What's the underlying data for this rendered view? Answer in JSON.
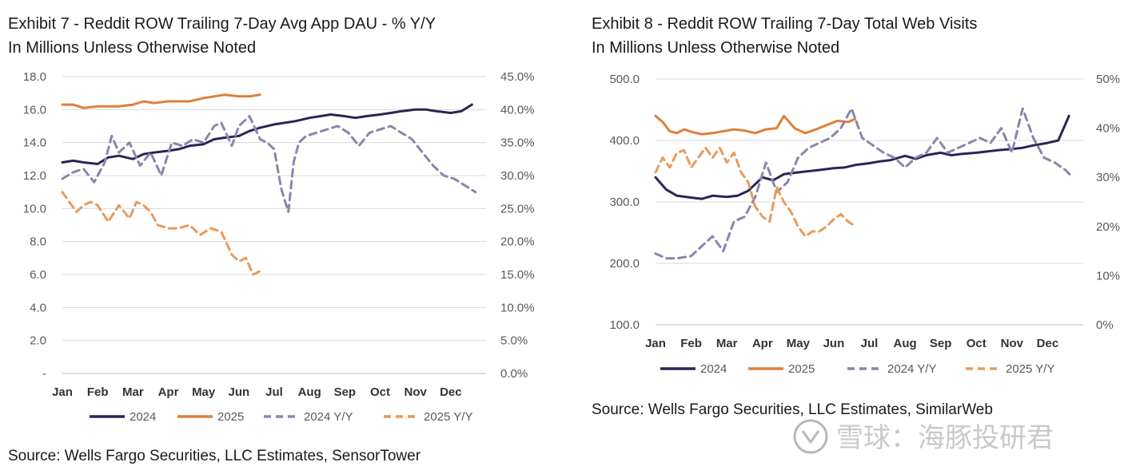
{
  "charts": [
    {
      "id": "chart-1",
      "title_line1": "Exhibit 7 - Reddit ROW Trailing 7-Day Avg App DAU - % Y/Y",
      "title_line2": "In Millions Unless Otherwise Noted",
      "source": "Source: Wells Fargo Securities, LLC Estimates, SensorTower"
    },
    {
      "id": "chart-2",
      "title_line1": "Exhibit 8 - Reddit ROW Trailing 7-Day Total Web Visits",
      "title_line2": "In Millions Unless Otherwise Noted",
      "source": "Source: Wells Fargo Securities, LLC Estimates, SimilarWeb"
    }
  ],
  "watermark": {
    "text": "雪球：海豚投研君"
  },
  "colors": {
    "navy": "#2b2456",
    "orange": "#e07f3b",
    "lavender": "#8886ab",
    "peach": "#e99a5a",
    "grid": "#d9d9d9",
    "axis": "#595959"
  },
  "chart_data": [
    {
      "type": "line",
      "title": "Exhibit 7 - Reddit ROW Trailing 7-Day Avg App DAU - % Y/Y",
      "subtitle": "In Millions Unless Otherwise Noted",
      "categories": [
        "Jan",
        "Feb",
        "Mar",
        "Apr",
        "May",
        "Jun",
        "Jul",
        "Aug",
        "Sep",
        "Oct",
        "Nov",
        "Dec"
      ],
      "y_left": {
        "min": 0,
        "max": 18,
        "ticks": [
          "-",
          "2.0",
          "4.0",
          "6.0",
          "8.0",
          "10.0",
          "12.0",
          "14.0",
          "16.0",
          "18.0"
        ]
      },
      "y_right": {
        "min": 0,
        "max": 45,
        "ticks": [
          "0.0%",
          "5.0%",
          "10.0%",
          "15.0%",
          "20.0%",
          "25.0%",
          "30.0%",
          "35.0%",
          "40.0%",
          "45.0%"
        ]
      },
      "grid": true,
      "legend_position": "bottom",
      "series": [
        {
          "name": "2024",
          "axis": "left",
          "style": "solid",
          "color": "#2b2456",
          "x": [
            0,
            0.3,
            0.6,
            1,
            1.3,
            1.6,
            2,
            2.3,
            2.6,
            3,
            3.3,
            3.6,
            4,
            4.3,
            4.6,
            5,
            5.3,
            5.6,
            6,
            6.3,
            6.6,
            7,
            7.3,
            7.6,
            8,
            8.3,
            8.6,
            9,
            9.3,
            9.6,
            10,
            10.3,
            10.6,
            11,
            11.3,
            11.6
          ],
          "y": [
            12.8,
            12.9,
            12.8,
            12.7,
            13.1,
            13.2,
            13.0,
            13.3,
            13.4,
            13.5,
            13.6,
            13.8,
            13.9,
            14.2,
            14.3,
            14.4,
            14.7,
            14.9,
            15.1,
            15.2,
            15.3,
            15.5,
            15.6,
            15.7,
            15.6,
            15.5,
            15.6,
            15.7,
            15.8,
            15.9,
            16.0,
            16.0,
            15.9,
            15.8,
            15.9,
            16.3
          ]
        },
        {
          "name": "2025",
          "axis": "left",
          "style": "solid",
          "color": "#e07f3b",
          "x": [
            0,
            0.3,
            0.6,
            1,
            1.3,
            1.6,
            2,
            2.3,
            2.6,
            3,
            3.3,
            3.6,
            4,
            4.3,
            4.6,
            5,
            5.3,
            5.6
          ],
          "y": [
            16.3,
            16.3,
            16.1,
            16.2,
            16.2,
            16.2,
            16.3,
            16.5,
            16.4,
            16.5,
            16.5,
            16.5,
            16.7,
            16.8,
            16.9,
            16.8,
            16.8,
            16.9
          ]
        },
        {
          "name": "2024 Y/Y",
          "axis": "right",
          "style": "dashed",
          "color": "#8886ab",
          "x": [
            0,
            0.3,
            0.6,
            0.9,
            1.2,
            1.4,
            1.6,
            1.9,
            2.2,
            2.5,
            2.8,
            3.1,
            3.4,
            3.7,
            4.0,
            4.3,
            4.5,
            4.8,
            5.0,
            5.3,
            5.6,
            5.8,
            6.0,
            6.2,
            6.4,
            6.55,
            6.7,
            6.9,
            7.2,
            7.5,
            7.8,
            8.1,
            8.4,
            8.7,
            9.0,
            9.3,
            9.6,
            9.9,
            10.2,
            10.5,
            10.8,
            11.1,
            11.4,
            11.7
          ],
          "y": [
            29.5,
            30.5,
            31,
            29,
            32,
            36,
            33.5,
            35,
            31.5,
            33.5,
            30,
            35,
            34.5,
            35.5,
            35,
            37.5,
            38,
            34.5,
            37.5,
            39,
            35.5,
            35,
            34,
            28,
            24.5,
            32,
            35,
            36,
            36.5,
            37,
            37.5,
            36.5,
            34.5,
            36.5,
            37,
            37.5,
            36.5,
            35.5,
            33.5,
            31.5,
            30,
            29.5,
            28.5,
            27.5
          ]
        },
        {
          "name": "2025 Y/Y",
          "axis": "right",
          "style": "dashed",
          "color": "#e99a5a",
          "x": [
            0,
            0.2,
            0.4,
            0.6,
            0.8,
            1.0,
            1.3,
            1.6,
            1.9,
            2.1,
            2.3,
            2.5,
            2.7,
            3.0,
            3.3,
            3.6,
            3.9,
            4.2,
            4.5,
            4.8,
            5.0,
            5.2,
            5.4,
            5.6
          ],
          "y": [
            27.5,
            26,
            24.5,
            25.5,
            26,
            25.5,
            23,
            25.5,
            23.5,
            26,
            25.5,
            24.5,
            22.5,
            22,
            22,
            22.5,
            21,
            22,
            21.5,
            18,
            17,
            17.5,
            15,
            15.5
          ]
        }
      ]
    },
    {
      "type": "line",
      "title": "Exhibit 8 - Reddit ROW Trailing 7-Day Total Web Visits",
      "subtitle": "In Millions Unless Otherwise Noted",
      "categories": [
        "Jan",
        "Feb",
        "Mar",
        "Apr",
        "May",
        "Jun",
        "Jul",
        "Aug",
        "Sep",
        "Oct",
        "Nov",
        "Dec"
      ],
      "y_left": {
        "min": 100,
        "max": 500,
        "ticks": [
          "100.0",
          "200.0",
          "300.0",
          "400.0",
          "500.0"
        ]
      },
      "y_right": {
        "min": 0,
        "max": 50,
        "ticks": [
          "0%",
          "10%",
          "20%",
          "30%",
          "40%",
          "50%"
        ]
      },
      "grid": true,
      "legend_position": "bottom",
      "series": [
        {
          "name": "2024",
          "axis": "left",
          "style": "solid",
          "color": "#2b2456",
          "x": [
            0,
            0.3,
            0.6,
            1,
            1.3,
            1.6,
            2,
            2.3,
            2.6,
            3,
            3.3,
            3.6,
            4,
            4.3,
            4.6,
            5,
            5.3,
            5.6,
            6,
            6.3,
            6.6,
            7,
            7.3,
            7.6,
            8,
            8.3,
            8.6,
            9,
            9.3,
            9.6,
            10,
            10.3,
            10.6,
            11,
            11.3,
            11.6
          ],
          "y": [
            340,
            320,
            310,
            307,
            305,
            310,
            308,
            310,
            318,
            340,
            335,
            345,
            348,
            350,
            352,
            355,
            356,
            360,
            363,
            366,
            368,
            375,
            370,
            376,
            380,
            376,
            378,
            380,
            382,
            384,
            386,
            388,
            392,
            396,
            400,
            440
          ]
        },
        {
          "name": "2025",
          "axis": "left",
          "style": "solid",
          "color": "#e07f3b",
          "x": [
            0,
            0.2,
            0.4,
            0.6,
            0.8,
            1.0,
            1.3,
            1.6,
            1.9,
            2.2,
            2.5,
            2.8,
            3.1,
            3.4,
            3.6,
            3.9,
            4.2,
            4.5,
            4.8,
            5.1,
            5.4,
            5.6
          ],
          "y": [
            440,
            430,
            415,
            412,
            418,
            414,
            410,
            412,
            415,
            418,
            416,
            412,
            418,
            420,
            440,
            420,
            412,
            418,
            425,
            432,
            430,
            435
          ]
        },
        {
          "name": "2024 Y/Y",
          "axis": "right",
          "style": "dashed",
          "color": "#8886ab",
          "x": [
            0,
            0.3,
            0.6,
            1.0,
            1.3,
            1.6,
            1.9,
            2.2,
            2.5,
            2.8,
            3.1,
            3.4,
            3.7,
            4.0,
            4.3,
            4.6,
            4.9,
            5.2,
            5.5,
            5.8,
            6.1,
            6.4,
            6.7,
            7.0,
            7.3,
            7.6,
            7.9,
            8.2,
            8.5,
            8.8,
            9.1,
            9.4,
            9.7,
            10.0,
            10.3,
            10.6,
            10.9,
            11.2,
            11.5,
            11.7
          ],
          "y": [
            14.5,
            13.5,
            13.5,
            14,
            16,
            18,
            15,
            21,
            22,
            26,
            33,
            27,
            29,
            34,
            36,
            37,
            38,
            40,
            44,
            38,
            36.5,
            35,
            34,
            32,
            34,
            35,
            38,
            35,
            36,
            37,
            38,
            37,
            40,
            35,
            44,
            38,
            34,
            33,
            31.5,
            30
          ]
        },
        {
          "name": "2025 Y/Y",
          "axis": "right",
          "style": "dashed",
          "color": "#e99a5a",
          "x": [
            0,
            0.2,
            0.4,
            0.6,
            0.8,
            1.0,
            1.2,
            1.4,
            1.6,
            1.8,
            2.0,
            2.2,
            2.4,
            2.6,
            2.8,
            3.0,
            3.2,
            3.4,
            3.6,
            3.8,
            4.0,
            4.2,
            4.4,
            4.6,
            4.8,
            5.0,
            5.2,
            5.4,
            5.6
          ],
          "y": [
            31,
            34,
            32,
            35,
            35.5,
            32,
            34,
            36,
            34,
            36,
            33,
            35,
            31,
            29,
            24,
            22,
            21,
            28,
            25,
            23,
            20,
            18,
            19,
            19,
            20,
            21.5,
            22.5,
            21,
            20
          ]
        }
      ]
    }
  ]
}
